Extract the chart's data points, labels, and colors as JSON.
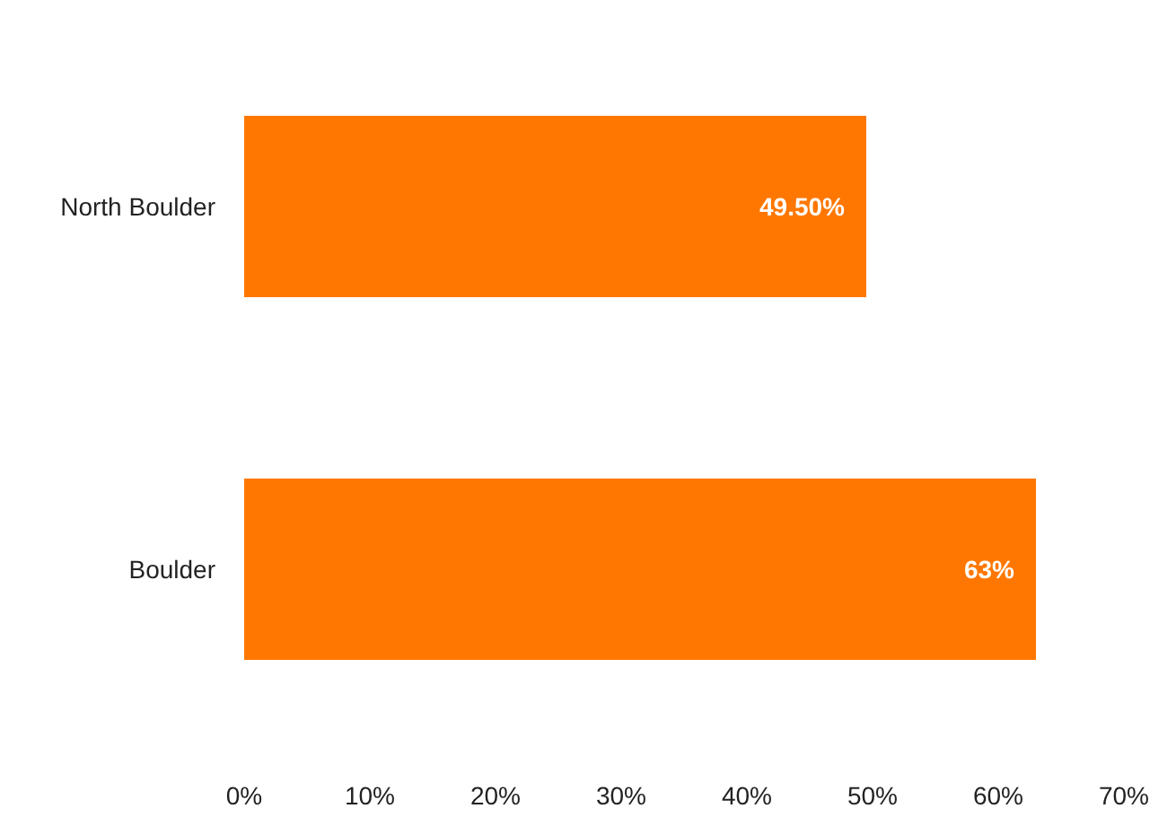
{
  "chart_data": {
    "type": "bar",
    "orientation": "horizontal",
    "categories": [
      "North Boulder",
      "Boulder"
    ],
    "values": [
      49.5,
      63
    ],
    "value_labels": [
      "49.50%",
      "63%"
    ],
    "color": "#ff7700",
    "xlim": [
      0,
      70
    ],
    "xticks": [
      {
        "value": 0,
        "label": "0%"
      },
      {
        "value": 10,
        "label": "10%"
      },
      {
        "value": 20,
        "label": "20%"
      },
      {
        "value": 30,
        "label": "30%"
      },
      {
        "value": 40,
        "label": "40%"
      },
      {
        "value": 50,
        "label": "50%"
      },
      {
        "value": 60,
        "label": "60%"
      },
      {
        "value": 70,
        "label": "70%"
      }
    ],
    "grid": false
  }
}
